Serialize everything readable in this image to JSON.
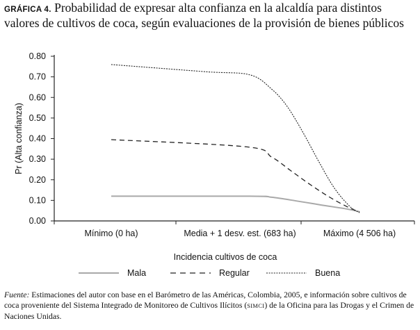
{
  "header": {
    "label": "GRÁFICA 4.",
    "title": "Probabilidad de expresar alta confianza en la alcaldía para distintos valores de cultivos de coca, según evaluaciones de la provisión de bienes públicos"
  },
  "chart_data": {
    "type": "line",
    "categories": [
      "Mínimo (0 ha)",
      "Media + 1 desv. est. (683 ha)",
      "Máximo (4 506 ha)"
    ],
    "x_range": [
      0,
      4506
    ],
    "x_category_positions": [
      0,
      683,
      4506
    ],
    "ylabel": "Pr (Alta confianza)",
    "xlabel": "Incidencia cultivos de coca",
    "ylim": [
      0,
      0.8
    ],
    "yticks": [
      "0.00",
      "0.10",
      "0.20",
      "0.30",
      "0.40",
      "0.50",
      "0.60",
      "0.70",
      "0.80"
    ],
    "grid": false,
    "legend_position": "bottom",
    "series": [
      {
        "name": "Mala",
        "style": "solid",
        "color": "#a9a9a9",
        "points": [
          [
            0,
            0.12
          ],
          [
            1000,
            0.12
          ],
          [
            1700,
            0.115
          ],
          [
            2500,
            0.097
          ],
          [
            3300,
            0.077
          ],
          [
            4100,
            0.058
          ],
          [
            4506,
            0.045
          ]
        ]
      },
      {
        "name": "Regular",
        "style": "dashed",
        "color": "#222222",
        "points": [
          [
            0,
            0.395
          ],
          [
            900,
            0.36
          ],
          [
            1700,
            0.31
          ],
          [
            2300,
            0.245
          ],
          [
            2900,
            0.18
          ],
          [
            3500,
            0.12
          ],
          [
            4100,
            0.07
          ],
          [
            4506,
            0.043
          ]
        ]
      },
      {
        "name": "Buena",
        "style": "dotted",
        "color": "#222222",
        "points": [
          [
            0,
            0.76
          ],
          [
            500,
            0.725
          ],
          [
            1000,
            0.71
          ],
          [
            1700,
            0.64
          ],
          [
            2200,
            0.555
          ],
          [
            2700,
            0.43
          ],
          [
            3200,
            0.29
          ],
          [
            3700,
            0.16
          ],
          [
            4200,
            0.07
          ],
          [
            4506,
            0.04
          ]
        ]
      }
    ]
  },
  "source": {
    "label": "Fuente:",
    "text_before": " Estimaciones del autor con base en el Barómetro de las Américas, Colombia, 2005, e información sobre cultivos de coca proveniente del Sistema Integrado de Monitoreo de Cultivos Ilícitos (",
    "acronym": "SIMCI",
    "text_after": ") de la Oficina para las Drogas y el Crimen de Naciones Unidas."
  }
}
